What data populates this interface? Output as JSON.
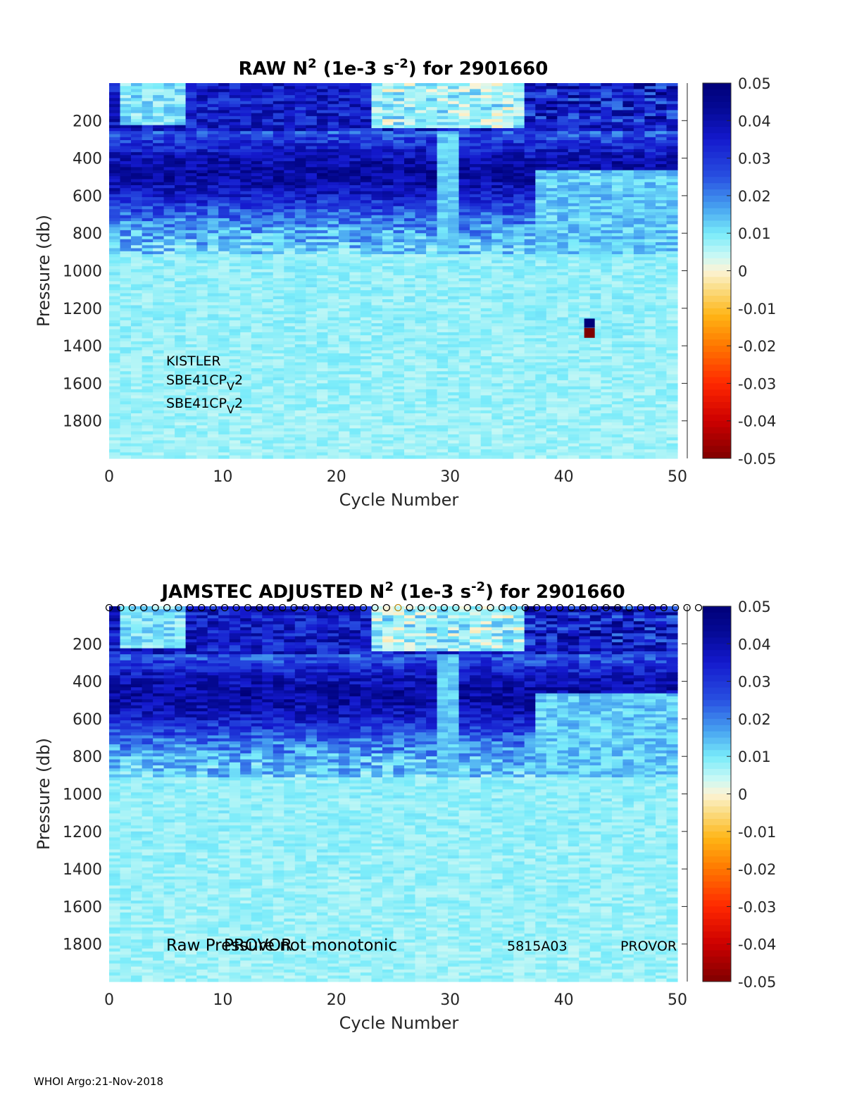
{
  "chart_data": [
    {
      "type": "heatmap",
      "title_parts": {
        "pre": "RAW N",
        "sup1": "2",
        "mid": " (1e-3 s",
        "sup2": "-2",
        "post": ") for 2901660"
      },
      "xlabel": "Cycle Number",
      "ylabel": "Pressure (db)",
      "xlim": [
        0,
        50
      ],
      "ylim": [
        0,
        2000
      ],
      "y_reversed": true,
      "xticks": [
        0,
        10,
        20,
        30,
        40,
        50
      ],
      "yticks": [
        200,
        400,
        600,
        800,
        1000,
        1200,
        1400,
        1600,
        1800
      ],
      "colorbar": {
        "clim": [
          -0.05,
          0.05
        ],
        "ticks": [
          "0.05",
          "0.04",
          "0.03",
          "0.02",
          "0.01",
          "0",
          "-0.01",
          "-0.02",
          "-0.03",
          "-0.04",
          "-0.05"
        ],
        "colormap": "jet-like diverging (dark red → orange → cream at 0 → cyan → dark blue)"
      },
      "grid": false,
      "profile_summary": "N2 high (0.03–0.05) from ~250–700 db, low (~0.005–0.01) below 900 db; near-zero/negative values in the upper 200 db around cycles 25–37; isolated strong pair at cycle 42 near 1300 db",
      "annotations": [
        {
          "text": "KISTLER"
        },
        {
          "text_pre": "SBE41CP",
          "sub": "V",
          "text_post": "2"
        },
        {
          "text_pre": "SBE41CP",
          "sub": "V",
          "text_post": "2"
        }
      ]
    },
    {
      "type": "heatmap",
      "title_parts": {
        "pre": "JAMSTEC  ADJUSTED N",
        "sup1": "2",
        "mid": " (1e-3 s",
        "sup2": "-2",
        "post": ") for 2901660"
      },
      "xlabel": "Cycle Number",
      "ylabel": "Pressure (db)",
      "xlim": [
        0,
        50
      ],
      "ylim": [
        0,
        2000
      ],
      "y_reversed": true,
      "xticks": [
        0,
        10,
        20,
        30,
        40,
        50
      ],
      "yticks": [
        200,
        400,
        600,
        800,
        1000,
        1200,
        1400,
        1600,
        1800
      ],
      "colorbar": {
        "clim": [
          -0.05,
          0.05
        ],
        "ticks": [
          "0.05",
          "0.04",
          "0.03",
          "0.02",
          "0.01",
          "0",
          "-0.01",
          "-0.02",
          "-0.03",
          "-0.04",
          "-0.05"
        ]
      },
      "grid": false,
      "profile_markers": "open circle 'o' at top of each cycle (cycles 1–52)",
      "annotations": [
        {
          "text": "Raw Pressure not monotonic"
        },
        {
          "text": "PROVOR"
        },
        {
          "text": "5815A03"
        },
        {
          "text": "PROVOR"
        }
      ]
    }
  ],
  "footer": "WHOI Argo:21-Nov-2018"
}
